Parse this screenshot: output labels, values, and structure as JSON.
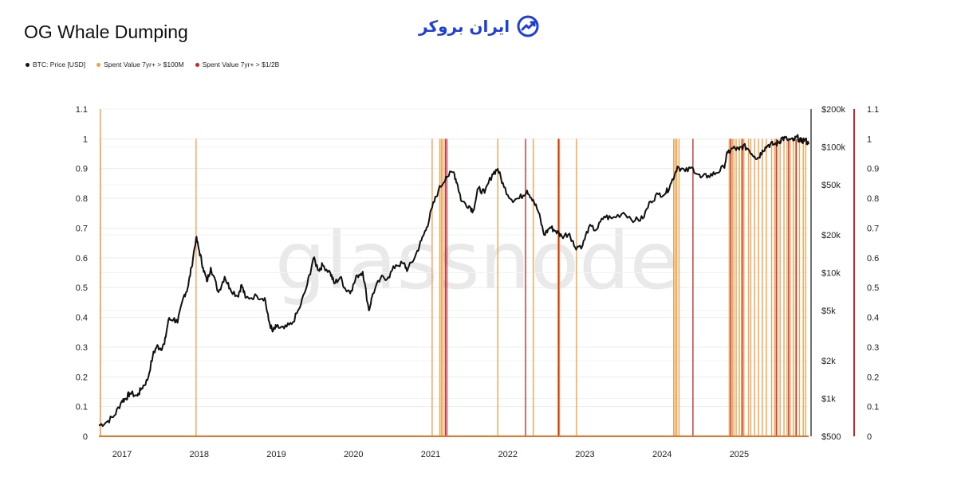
{
  "title": "OG Whale Dumping",
  "logo": {
    "text": "ایران بروکر"
  },
  "legend": [
    {
      "label": "BTC: Price [USD]",
      "color": "#111111"
    },
    {
      "label": "Spent Value 7yr+ > $100M",
      "color": "#f0a04b"
    },
    {
      "label": "Spent Value 7yr+ > $1/2B",
      "color": "#c62828"
    }
  ],
  "watermark": "glassnode",
  "chart_data": {
    "type": "line",
    "title": "OG Whale Dumping",
    "x_ticks": [
      "2017",
      "2018",
      "2019",
      "2020",
      "2021",
      "2022",
      "2023",
      "2024",
      "2025"
    ],
    "y_left_ticks": [
      "0",
      "0.1",
      "0.2",
      "0.3",
      "0.4",
      "0.5",
      "0.6",
      "0.7",
      "0.8",
      "0.9",
      "1",
      "1.1"
    ],
    "y_left_range": [
      0,
      1.1
    ],
    "y_right_ticks": [
      "$500",
      "$1k",
      "$2k",
      "$5k",
      "$10k",
      "$20k",
      "$50k",
      "$100k",
      "$200k"
    ],
    "y_right_tick_values": [
      500,
      1000,
      2000,
      5000,
      10000,
      20000,
      50000,
      100000,
      200000
    ],
    "y_right_range": [
      500,
      200000
    ],
    "y_right_scale": "log",
    "y_right2_ticks": [
      "0",
      "0.1",
      "0.2",
      "0.3",
      "0.4",
      "0.5",
      "0.6",
      "0.7",
      "0.8",
      "0.9",
      "1",
      "1.1"
    ],
    "x_range": [
      2016.7,
      2025.9
    ],
    "grid": true,
    "legend_position": "top-left",
    "series": [
      {
        "name": "BTC: Price [USD]",
        "axis": "right",
        "color": "#111111",
        "points": [
          [
            2016.7,
            610
          ],
          [
            2016.8,
            650
          ],
          [
            2016.9,
            730
          ],
          [
            2017.0,
            960
          ],
          [
            2017.05,
            1000
          ],
          [
            2017.1,
            1100
          ],
          [
            2017.2,
            1050
          ],
          [
            2017.25,
            1200
          ],
          [
            2017.33,
            1400
          ],
          [
            2017.4,
            2200
          ],
          [
            2017.45,
            2600
          ],
          [
            2017.5,
            2500
          ],
          [
            2017.55,
            2700
          ],
          [
            2017.6,
            4200
          ],
          [
            2017.67,
            4300
          ],
          [
            2017.72,
            4000
          ],
          [
            2017.8,
            6500
          ],
          [
            2017.85,
            7500
          ],
          [
            2017.9,
            11000
          ],
          [
            2017.96,
            19000
          ],
          [
            2018.0,
            15000
          ],
          [
            2018.05,
            11000
          ],
          [
            2018.1,
            8500
          ],
          [
            2018.15,
            11000
          ],
          [
            2018.25,
            7000
          ],
          [
            2018.33,
            9300
          ],
          [
            2018.4,
            7500
          ],
          [
            2018.5,
            6500
          ],
          [
            2018.55,
            8000
          ],
          [
            2018.6,
            6300
          ],
          [
            2018.75,
            6500
          ],
          [
            2018.85,
            6300
          ],
          [
            2018.9,
            4200
          ],
          [
            2018.95,
            3400
          ],
          [
            2019.0,
            3700
          ],
          [
            2019.1,
            3600
          ],
          [
            2019.2,
            3900
          ],
          [
            2019.3,
            5200
          ],
          [
            2019.4,
            8000
          ],
          [
            2019.48,
            13000
          ],
          [
            2019.55,
            10500
          ],
          [
            2019.6,
            11500
          ],
          [
            2019.7,
            10000
          ],
          [
            2019.75,
            8200
          ],
          [
            2019.83,
            9200
          ],
          [
            2019.9,
            7300
          ],
          [
            2019.97,
            7200
          ],
          [
            2020.05,
            9500
          ],
          [
            2020.12,
            10200
          ],
          [
            2020.2,
            5000
          ],
          [
            2020.25,
            6800
          ],
          [
            2020.35,
            9000
          ],
          [
            2020.45,
            9200
          ],
          [
            2020.55,
            11500
          ],
          [
            2020.65,
            11800
          ],
          [
            2020.7,
            10500
          ],
          [
            2020.8,
            13500
          ],
          [
            2020.88,
            18000
          ],
          [
            2020.95,
            23000
          ],
          [
            2021.02,
            33000
          ],
          [
            2021.1,
            45000
          ],
          [
            2021.2,
            58000
          ],
          [
            2021.3,
            63000
          ],
          [
            2021.35,
            50000
          ],
          [
            2021.4,
            37000
          ],
          [
            2021.5,
            34000
          ],
          [
            2021.55,
            31000
          ],
          [
            2021.62,
            47000
          ],
          [
            2021.7,
            43000
          ],
          [
            2021.8,
            61000
          ],
          [
            2021.87,
            67000
          ],
          [
            2021.95,
            48000
          ],
          [
            2022.05,
            38000
          ],
          [
            2022.15,
            39000
          ],
          [
            2022.25,
            45000
          ],
          [
            2022.33,
            38000
          ],
          [
            2022.4,
            30000
          ],
          [
            2022.47,
            20000
          ],
          [
            2022.55,
            23000
          ],
          [
            2022.62,
            21500
          ],
          [
            2022.7,
            19500
          ],
          [
            2022.8,
            20500
          ],
          [
            2022.87,
            16000
          ],
          [
            2022.97,
            16500
          ],
          [
            2023.05,
            23000
          ],
          [
            2023.15,
            22000
          ],
          [
            2023.25,
            28000
          ],
          [
            2023.35,
            27000
          ],
          [
            2023.5,
            30000
          ],
          [
            2023.65,
            26000
          ],
          [
            2023.75,
            27000
          ],
          [
            2023.85,
            37000
          ],
          [
            2023.95,
            42000
          ],
          [
            2024.05,
            43000
          ],
          [
            2024.12,
            52000
          ],
          [
            2024.2,
            70000
          ],
          [
            2024.3,
            64000
          ],
          [
            2024.4,
            68000
          ],
          [
            2024.5,
            57000
          ],
          [
            2024.6,
            59000
          ],
          [
            2024.7,
            62000
          ],
          [
            2024.8,
            69000
          ],
          [
            2024.85,
            90000
          ],
          [
            2024.92,
            98000
          ],
          [
            2025.0,
            95000
          ],
          [
            2025.05,
            102000
          ],
          [
            2025.12,
            96000
          ],
          [
            2025.2,
            84000
          ],
          [
            2025.25,
            82000
          ],
          [
            2025.3,
            94000
          ],
          [
            2025.38,
            104000
          ],
          [
            2025.45,
            105000
          ],
          [
            2025.52,
            108000
          ],
          [
            2025.55,
            118000
          ],
          [
            2025.62,
            115000
          ],
          [
            2025.7,
            112000
          ],
          [
            2025.75,
            120000
          ],
          [
            2025.8,
            110000
          ],
          [
            2025.85,
            115000
          ],
          [
            2025.9,
            105000
          ]
        ]
      },
      {
        "name": "Spent Value 7yr+ > $100M",
        "axis": "left",
        "color": "#f0a04b",
        "events": [
          2016.72,
          2017.96,
          2021.02,
          2021.12,
          2021.14,
          2021.16,
          2021.87,
          2022.33,
          2022.65,
          2022.67,
          2022.89,
          2024.15,
          2024.17,
          2024.19,
          2024.22,
          2024.87,
          2024.89,
          2024.91,
          2024.93,
          2024.96,
          2025.0,
          2025.03,
          2025.06,
          2025.12,
          2025.15,
          2025.2,
          2025.25,
          2025.3,
          2025.35,
          2025.42,
          2025.46,
          2025.5,
          2025.53,
          2025.58,
          2025.62,
          2025.66,
          2025.7,
          2025.73,
          2025.78,
          2025.83,
          2025.86
        ]
      },
      {
        "name": "Spent Value 7yr+ > $1/2B",
        "axis": "left",
        "color": "#c62828",
        "events": [
          2021.19,
          2021.21,
          2022.23,
          2022.66,
          2024.4,
          2024.89,
          2025.04,
          2025.48,
          2025.64,
          2025.74
        ]
      }
    ]
  }
}
